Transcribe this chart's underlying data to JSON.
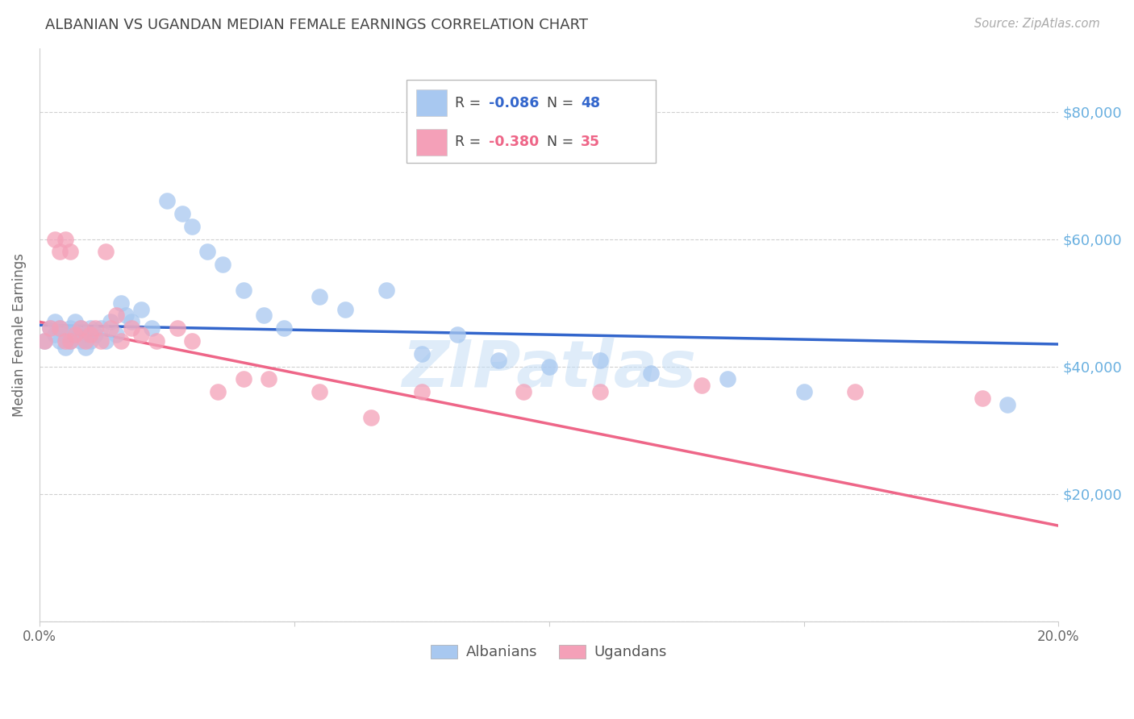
{
  "title": "ALBANIAN VS UGANDAN MEDIAN FEMALE EARNINGS CORRELATION CHART",
  "source": "Source: ZipAtlas.com",
  "ylabel": "Median Female Earnings",
  "watermark": "ZIPatlas",
  "xlim": [
    0.0,
    0.2
  ],
  "ylim": [
    0,
    90000
  ],
  "yticks": [
    0,
    20000,
    40000,
    60000,
    80000
  ],
  "ytick_labels": [
    "",
    "$20,000",
    "$40,000",
    "$60,000",
    "$80,000"
  ],
  "background_color": "#ffffff",
  "grid_color": "#d0d0d0",
  "albanian_color": "#a8c8f0",
  "ugandan_color": "#f4a0b8",
  "albanian_line_color": "#3366cc",
  "ugandan_line_color": "#ee6688",
  "alb_R": "-0.086",
  "alb_N": "48",
  "uga_R": "-0.380",
  "uga_N": "35",
  "albanian_scatter_x": [
    0.001,
    0.002,
    0.003,
    0.003,
    0.004,
    0.004,
    0.005,
    0.005,
    0.006,
    0.006,
    0.007,
    0.007,
    0.008,
    0.008,
    0.009,
    0.009,
    0.01,
    0.01,
    0.011,
    0.012,
    0.013,
    0.014,
    0.015,
    0.016,
    0.017,
    0.018,
    0.02,
    0.022,
    0.025,
    0.028,
    0.03,
    0.033,
    0.036,
    0.04,
    0.044,
    0.048,
    0.055,
    0.06,
    0.068,
    0.075,
    0.082,
    0.09,
    0.1,
    0.11,
    0.12,
    0.135,
    0.15,
    0.19
  ],
  "albanian_scatter_y": [
    44000,
    46000,
    45000,
    47000,
    44000,
    46000,
    45000,
    43000,
    46000,
    44000,
    47000,
    45000,
    44000,
    46000,
    45000,
    43000,
    46000,
    44000,
    45000,
    46000,
    44000,
    47000,
    45000,
    50000,
    48000,
    47000,
    49000,
    46000,
    66000,
    64000,
    62000,
    58000,
    56000,
    52000,
    48000,
    46000,
    51000,
    49000,
    52000,
    42000,
    45000,
    41000,
    40000,
    41000,
    39000,
    38000,
    36000,
    34000
  ],
  "ugandan_scatter_x": [
    0.001,
    0.002,
    0.003,
    0.004,
    0.004,
    0.005,
    0.005,
    0.006,
    0.006,
    0.007,
    0.008,
    0.009,
    0.01,
    0.011,
    0.012,
    0.013,
    0.014,
    0.015,
    0.016,
    0.018,
    0.02,
    0.023,
    0.027,
    0.03,
    0.035,
    0.04,
    0.045,
    0.055,
    0.065,
    0.075,
    0.095,
    0.11,
    0.13,
    0.16,
    0.185
  ],
  "ugandan_scatter_y": [
    44000,
    46000,
    60000,
    46000,
    58000,
    44000,
    60000,
    44000,
    58000,
    45000,
    46000,
    44000,
    45000,
    46000,
    44000,
    58000,
    46000,
    48000,
    44000,
    46000,
    45000,
    44000,
    46000,
    44000,
    36000,
    38000,
    38000,
    36000,
    32000,
    36000,
    36000,
    36000,
    37000,
    36000,
    35000
  ],
  "alb_trend_x": [
    0.0,
    0.2
  ],
  "alb_trend_y": [
    46500,
    43500
  ],
  "uga_trend_x": [
    0.0,
    0.2
  ],
  "uga_trend_y": [
    47000,
    15000
  ]
}
